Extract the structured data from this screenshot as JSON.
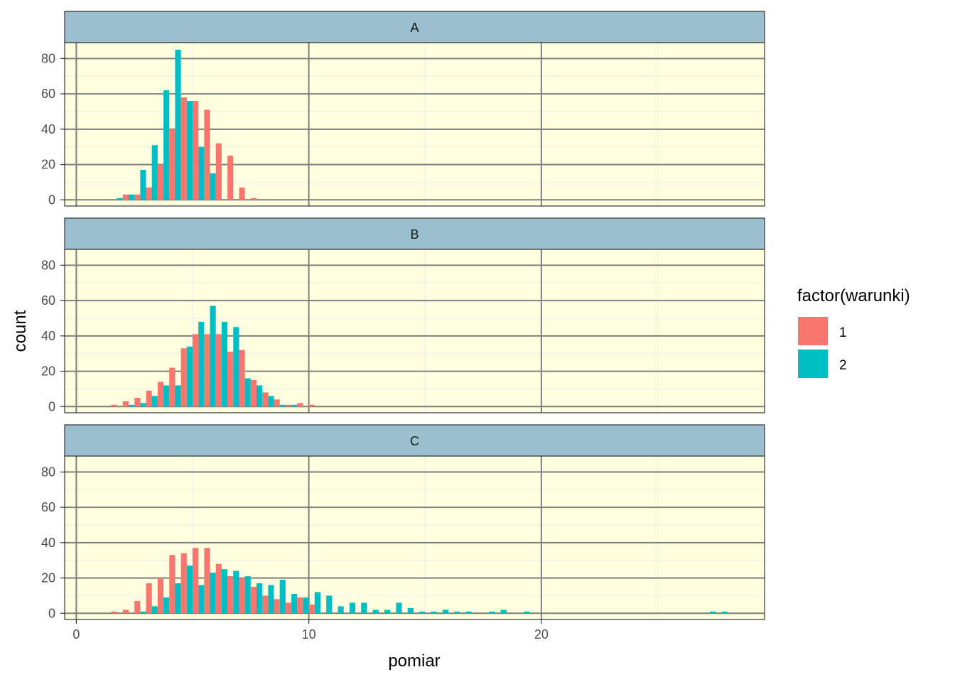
{
  "chart_data": {
    "type": "bar",
    "subtype": "faceted-histogram-dodged",
    "title": "",
    "xlabel": "pomiar",
    "ylabel": "count",
    "xlim": [
      -0.5,
      29.6
    ],
    "ylim": [
      -3.5,
      89
    ],
    "x_ticks": [
      0,
      10,
      20
    ],
    "y_ticks": [
      0,
      20,
      40,
      60,
      80
    ],
    "binwidth": 0.5,
    "grid": true,
    "legend": {
      "title": "factor(warunki)",
      "position": "right"
    },
    "colors": {
      "1": "#F8766D",
      "2": "#00BFC4",
      "strip": "#9BBFCE",
      "panel": "#FFFFE0",
      "grid_major": "#7f7f7f",
      "grid_minor": "#ebebeb"
    },
    "series": [
      {
        "name": "1",
        "color": "#F8766D"
      },
      {
        "name": "2",
        "color": "#00BFC4"
      }
    ],
    "facets": [
      {
        "label": "A",
        "bins": [
          {
            "x": 1.75,
            "v1": 0,
            "v2": 1
          },
          {
            "x": 2.25,
            "v1": 3,
            "v2": 3
          },
          {
            "x": 2.75,
            "v1": 3,
            "v2": 17
          },
          {
            "x": 3.25,
            "v1": 7,
            "v2": 31
          },
          {
            "x": 3.75,
            "v1": 20,
            "v2": 62
          },
          {
            "x": 4.25,
            "v1": 40,
            "v2": 85
          },
          {
            "x": 4.75,
            "v1": 58,
            "v2": 56
          },
          {
            "x": 5.25,
            "v1": 56,
            "v2": 30
          },
          {
            "x": 5.75,
            "v1": 51,
            "v2": 15
          },
          {
            "x": 6.25,
            "v1": 32,
            "v2": 0
          },
          {
            "x": 6.75,
            "v1": 25,
            "v2": 0
          },
          {
            "x": 7.25,
            "v1": 7,
            "v2": 0
          },
          {
            "x": 7.75,
            "v1": 1,
            "v2": 0
          }
        ]
      },
      {
        "label": "B",
        "bins": [
          {
            "x": 1.75,
            "v1": 1,
            "v2": 0
          },
          {
            "x": 2.25,
            "v1": 3,
            "v2": 1
          },
          {
            "x": 2.75,
            "v1": 5,
            "v2": 2
          },
          {
            "x": 3.25,
            "v1": 9,
            "v2": 6
          },
          {
            "x": 3.75,
            "v1": 14,
            "v2": 12
          },
          {
            "x": 4.25,
            "v1": 22,
            "v2": 12
          },
          {
            "x": 4.75,
            "v1": 33,
            "v2": 34
          },
          {
            "x": 5.25,
            "v1": 41,
            "v2": 48
          },
          {
            "x": 5.75,
            "v1": 41,
            "v2": 57
          },
          {
            "x": 6.25,
            "v1": 41,
            "v2": 48
          },
          {
            "x": 6.75,
            "v1": 31,
            "v2": 45
          },
          {
            "x": 7.25,
            "v1": 32,
            "v2": 16
          },
          {
            "x": 7.75,
            "v1": 15,
            "v2": 12
          },
          {
            "x": 8.25,
            "v1": 8,
            "v2": 6
          },
          {
            "x": 8.75,
            "v1": 4,
            "v2": 1
          },
          {
            "x": 9.25,
            "v1": 1,
            "v2": 1
          },
          {
            "x": 9.75,
            "v1": 2,
            "v2": 0
          },
          {
            "x": 10.25,
            "v1": 1,
            "v2": 0
          }
        ]
      },
      {
        "label": "C",
        "bins": [
          {
            "x": 1.75,
            "v1": 1,
            "v2": 0
          },
          {
            "x": 2.25,
            "v1": 2,
            "v2": 0
          },
          {
            "x": 2.75,
            "v1": 7,
            "v2": 1
          },
          {
            "x": 3.25,
            "v1": 17,
            "v2": 4
          },
          {
            "x": 3.75,
            "v1": 20,
            "v2": 9
          },
          {
            "x": 4.25,
            "v1": 33,
            "v2": 17
          },
          {
            "x": 4.75,
            "v1": 34,
            "v2": 27
          },
          {
            "x": 5.25,
            "v1": 37,
            "v2": 16
          },
          {
            "x": 5.75,
            "v1": 37,
            "v2": 23
          },
          {
            "x": 6.25,
            "v1": 28,
            "v2": 25
          },
          {
            "x": 6.75,
            "v1": 21,
            "v2": 24
          },
          {
            "x": 7.25,
            "v1": 20,
            "v2": 21
          },
          {
            "x": 7.75,
            "v1": 15,
            "v2": 17
          },
          {
            "x": 8.25,
            "v1": 10,
            "v2": 16
          },
          {
            "x": 8.75,
            "v1": 8,
            "v2": 19
          },
          {
            "x": 9.25,
            "v1": 6,
            "v2": 11
          },
          {
            "x": 9.75,
            "v1": 9,
            "v2": 9
          },
          {
            "x": 10.25,
            "v1": 5,
            "v2": 12
          },
          {
            "x": 10.75,
            "v1": 0,
            "v2": 10
          },
          {
            "x": 11.25,
            "v1": 0,
            "v2": 4
          },
          {
            "x": 11.75,
            "v1": 0,
            "v2": 6
          },
          {
            "x": 12.25,
            "v1": 0,
            "v2": 6
          },
          {
            "x": 12.75,
            "v1": 0,
            "v2": 2
          },
          {
            "x": 13.25,
            "v1": 0,
            "v2": 2
          },
          {
            "x": 13.75,
            "v1": 0,
            "v2": 6
          },
          {
            "x": 14.25,
            "v1": 0,
            "v2": 3
          },
          {
            "x": 14.75,
            "v1": 0,
            "v2": 1
          },
          {
            "x": 15.25,
            "v1": 0,
            "v2": 1
          },
          {
            "x": 15.75,
            "v1": 0,
            "v2": 2
          },
          {
            "x": 16.25,
            "v1": 0,
            "v2": 1
          },
          {
            "x": 16.75,
            "v1": 0,
            "v2": 1
          },
          {
            "x": 17.75,
            "v1": 0,
            "v2": 1
          },
          {
            "x": 18.25,
            "v1": 0,
            "v2": 2
          },
          {
            "x": 19.25,
            "v1": 0,
            "v2": 1
          },
          {
            "x": 27.25,
            "v1": 0,
            "v2": 1
          },
          {
            "x": 27.75,
            "v1": 0,
            "v2": 1
          }
        ]
      }
    ]
  }
}
